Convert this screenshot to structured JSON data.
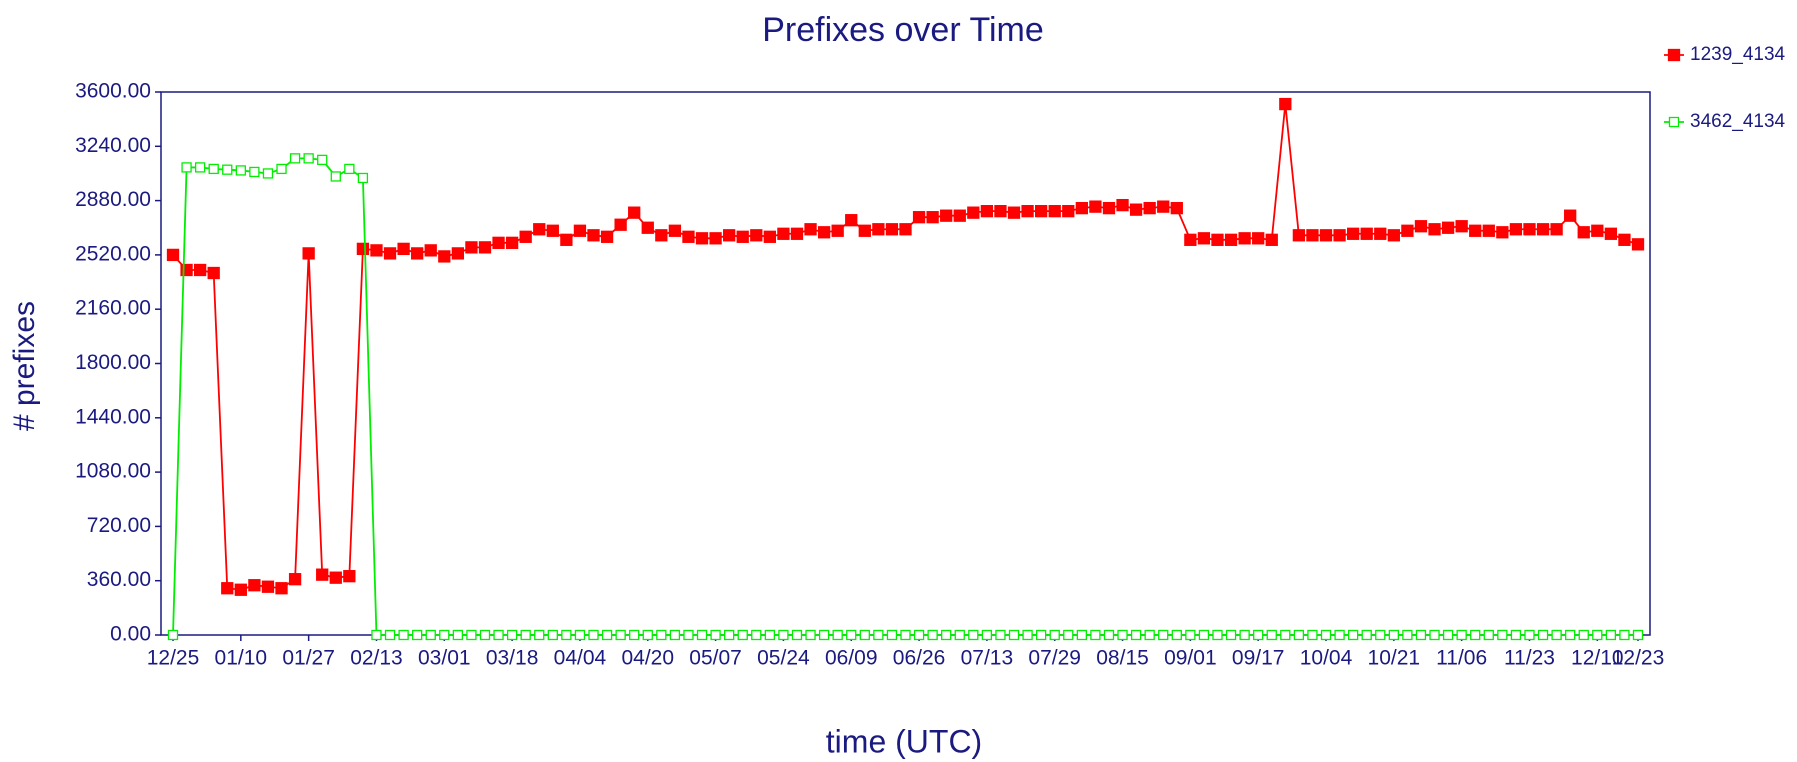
{
  "chart_data": {
    "type": "line",
    "title": "Prefixes over Time",
    "xlabel": "time (UTC)",
    "ylabel": "# prefixes",
    "categories": [
      "12/25",
      null,
      null,
      null,
      null,
      "01/10",
      null,
      null,
      null,
      null,
      "01/27",
      null,
      null,
      null,
      null,
      "02/13",
      null,
      null,
      null,
      null,
      "03/01",
      null,
      null,
      null,
      null,
      "03/18",
      null,
      null,
      null,
      null,
      "04/04",
      null,
      null,
      null,
      null,
      "04/20",
      null,
      null,
      null,
      null,
      "05/07",
      null,
      null,
      null,
      null,
      "05/24",
      null,
      null,
      null,
      null,
      "06/09",
      null,
      null,
      null,
      null,
      "06/26",
      null,
      null,
      null,
      null,
      "07/13",
      null,
      null,
      null,
      null,
      "07/29",
      null,
      null,
      null,
      null,
      "08/15",
      null,
      null,
      null,
      null,
      "09/01",
      null,
      null,
      null,
      null,
      "09/17",
      null,
      null,
      null,
      null,
      "10/04",
      null,
      null,
      null,
      null,
      "10/21",
      null,
      null,
      null,
      null,
      "11/06",
      null,
      null,
      null,
      null,
      "11/23",
      null,
      null,
      null,
      null,
      "12/10",
      null,
      null,
      "12/23"
    ],
    "series": [
      {
        "name": "1239_4134",
        "color": "#ff0000",
        "marker": "filled",
        "values": [
          2520,
          2420,
          2420,
          2400,
          310,
          300,
          330,
          320,
          310,
          370,
          2530,
          400,
          380,
          390,
          2560,
          2550,
          2530,
          2560,
          2530,
          2550,
          2510,
          2530,
          2570,
          2570,
          2600,
          2600,
          2640,
          2690,
          2680,
          2620,
          2680,
          2650,
          2640,
          2720,
          2800,
          2700,
          2650,
          2680,
          2640,
          2630,
          2630,
          2650,
          2640,
          2650,
          2640,
          2660,
          2660,
          2690,
          2670,
          2680,
          2750,
          2680,
          2690,
          2690,
          2690,
          2770,
          2770,
          2780,
          2780,
          2800,
          2810,
          2810,
          2800,
          2810,
          2810,
          2810,
          2810,
          2830,
          2840,
          2830,
          2850,
          2820,
          2830,
          2840,
          2830,
          2620,
          2630,
          2620,
          2620,
          2630,
          2630,
          2620,
          3520,
          2650,
          2650,
          2650,
          2650,
          2660,
          2660,
          2660,
          2650,
          2680,
          2710,
          2690,
          2700,
          2710,
          2680,
          2680,
          2670,
          2690,
          2690,
          2690,
          2690,
          2780,
          2670,
          2680,
          2660,
          2620,
          2590
        ]
      },
      {
        "name": "3462_4134",
        "color": "#00ee00",
        "marker": "hollow",
        "values": [
          0,
          3100,
          3100,
          3090,
          3085,
          3080,
          3070,
          3060,
          3090,
          3160,
          3160,
          3150,
          3040,
          3090,
          3030,
          0,
          0,
          0,
          0,
          0,
          0,
          0,
          0,
          0,
          0,
          0,
          0,
          0,
          0,
          0,
          0,
          0,
          0,
          0,
          0,
          0,
          0,
          0,
          0,
          0,
          0,
          0,
          0,
          0,
          0,
          0,
          0,
          0,
          0,
          0,
          0,
          0,
          0,
          0,
          0,
          0,
          0,
          0,
          0,
          0,
          0,
          0,
          0,
          0,
          0,
          0,
          0,
          0,
          0,
          0,
          0,
          0,
          0,
          0,
          0,
          0,
          0,
          0,
          0,
          0,
          0,
          0,
          0,
          0,
          0,
          0,
          0,
          0,
          0,
          0,
          0,
          0,
          0,
          0,
          0,
          0,
          0,
          0,
          0,
          0,
          0,
          0,
          0,
          0,
          0,
          0,
          0,
          0,
          0
        ]
      }
    ],
    "ylim": [
      0,
      3600
    ],
    "yticks": [
      {
        "value": 0,
        "label": "0.00"
      },
      {
        "value": 360,
        "label": "360.00"
      },
      {
        "value": 720,
        "label": "720.00"
      },
      {
        "value": 1080,
        "label": "1080.00"
      },
      {
        "value": 1440,
        "label": "1440.00"
      },
      {
        "value": 1800,
        "label": "1800.00"
      },
      {
        "value": 2160,
        "label": "2160.00"
      },
      {
        "value": 2520,
        "label": "2520.00"
      },
      {
        "value": 2880,
        "label": "2880.00"
      },
      {
        "value": 3240,
        "label": "3240.00"
      },
      {
        "value": 3600,
        "label": "3600.00"
      }
    ],
    "legend": "top-right",
    "axis_color": "#1a1a80"
  }
}
